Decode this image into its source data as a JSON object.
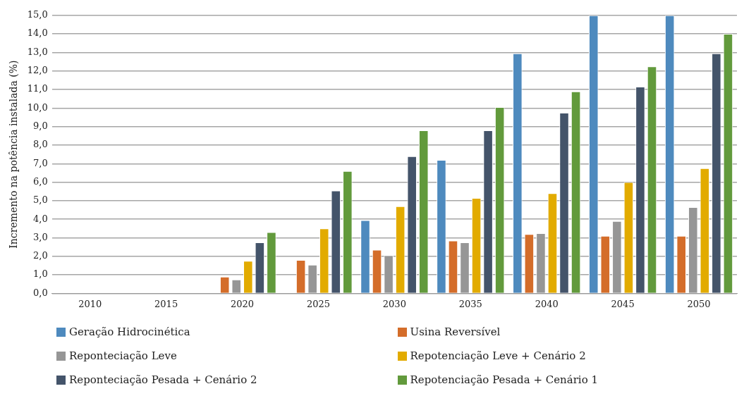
{
  "chart_data": {
    "type": "bar",
    "ylabel": "Incremento na potência instalada (%)",
    "categories": [
      "2010",
      "2015",
      "2020",
      "2025",
      "2030",
      "2035",
      "2040",
      "2045",
      "2050"
    ],
    "series": [
      {
        "name": "Geração Hidrocinética",
        "color": "#4e8abe",
        "values": [
          null,
          null,
          null,
          null,
          3.95,
          7.2,
          12.95,
          15,
          15
        ]
      },
      {
        "name": "Usina Reversível",
        "color": "#d46d2a",
        "values": [
          null,
          null,
          0.9,
          1.8,
          2.35,
          2.85,
          3.2,
          3.1,
          3.1
        ]
      },
      {
        "name": "Reponteciação Leve",
        "color": "#969696",
        "values": [
          null,
          null,
          0.75,
          1.55,
          2.05,
          2.75,
          3.25,
          3.9,
          4.65
        ]
      },
      {
        "name": "Repotenciação Leve + Cenário 2",
        "color": "#e2ab00",
        "values": [
          null,
          null,
          1.75,
          3.5,
          4.7,
          5.15,
          5.4,
          6.0,
          6.75
        ]
      },
      {
        "name": "Reponteciação Pesada + Cenário 2",
        "color": "#44546a",
        "values": [
          null,
          null,
          2.75,
          5.55,
          7.4,
          8.8,
          9.75,
          11.15,
          12.95
        ]
      },
      {
        "name": "Repotenciação Pesada + Cenário 1",
        "color": "#629a3c",
        "values": [
          null,
          null,
          3.3,
          6.6,
          8.8,
          10.05,
          10.9,
          12.25,
          14.0
        ]
      }
    ],
    "ylim": [
      0,
      15
    ],
    "yticks": [
      {
        "value": 0,
        "label": "0,0"
      },
      {
        "value": 1,
        "label": "1,0"
      },
      {
        "value": 2,
        "label": "2,0"
      },
      {
        "value": 3,
        "label": "3,0"
      },
      {
        "value": 4,
        "label": "4,0"
      },
      {
        "value": 5,
        "label": "5,0"
      },
      {
        "value": 6,
        "label": "6,0"
      },
      {
        "value": 7,
        "label": "7,0"
      },
      {
        "value": 8,
        "label": "8,0"
      },
      {
        "value": 9,
        "label": "9,0"
      },
      {
        "value": 10,
        "label": "10,0"
      },
      {
        "value": 11,
        "label": "11,0"
      },
      {
        "value": 12,
        "label": "12,0"
      },
      {
        "value": 13,
        "label": "13,0"
      },
      {
        "value": 14,
        "label": "14,0"
      },
      {
        "value": 15,
        "label": "15,0"
      }
    ],
    "grid": "y",
    "legend": "bottom"
  }
}
